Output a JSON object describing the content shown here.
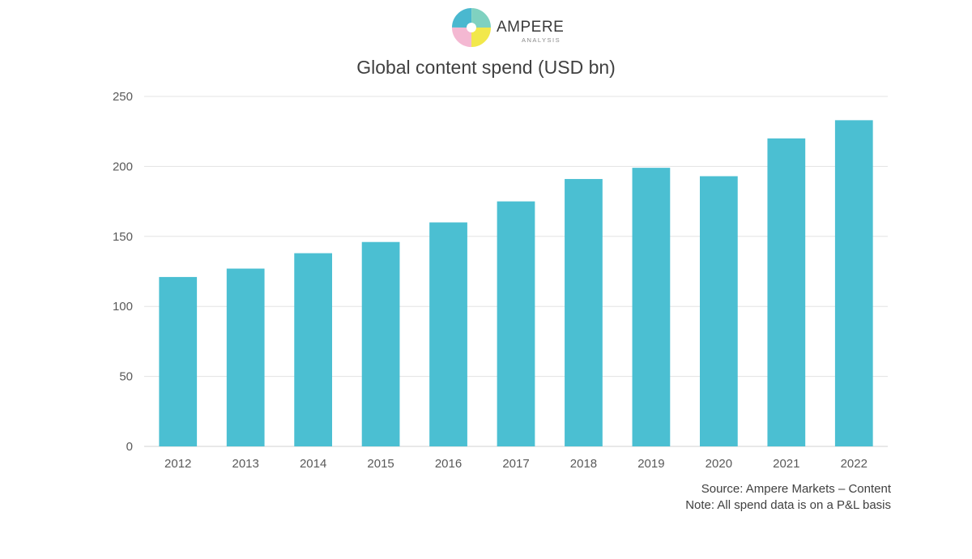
{
  "brand": {
    "name": "AMPERE",
    "subtitle": "ANALYSIS",
    "colors": [
      "#f2e84b",
      "#f4b8d2",
      "#4ab8cf",
      "#7fd1c0"
    ]
  },
  "chart_data": {
    "type": "bar",
    "title": "Global content spend (USD bn)",
    "xlabel": "",
    "ylabel": "",
    "categories": [
      "2012",
      "2013",
      "2014",
      "2015",
      "2016",
      "2017",
      "2018",
      "2019",
      "2020",
      "2021",
      "2022"
    ],
    "values": [
      121,
      127,
      138,
      146,
      160,
      175,
      191,
      199,
      193,
      220,
      233
    ],
    "ylim": [
      0,
      250
    ],
    "yticks": [
      "0",
      "50",
      "100",
      "150",
      "200",
      "250"
    ],
    "grid": true,
    "bar_color": "#4bbfd2",
    "grid_color": "#e3e3e3"
  },
  "footnotes": {
    "source": "Source: Ampere Markets – Content",
    "note": "Note: All spend data is on a P&L basis"
  }
}
